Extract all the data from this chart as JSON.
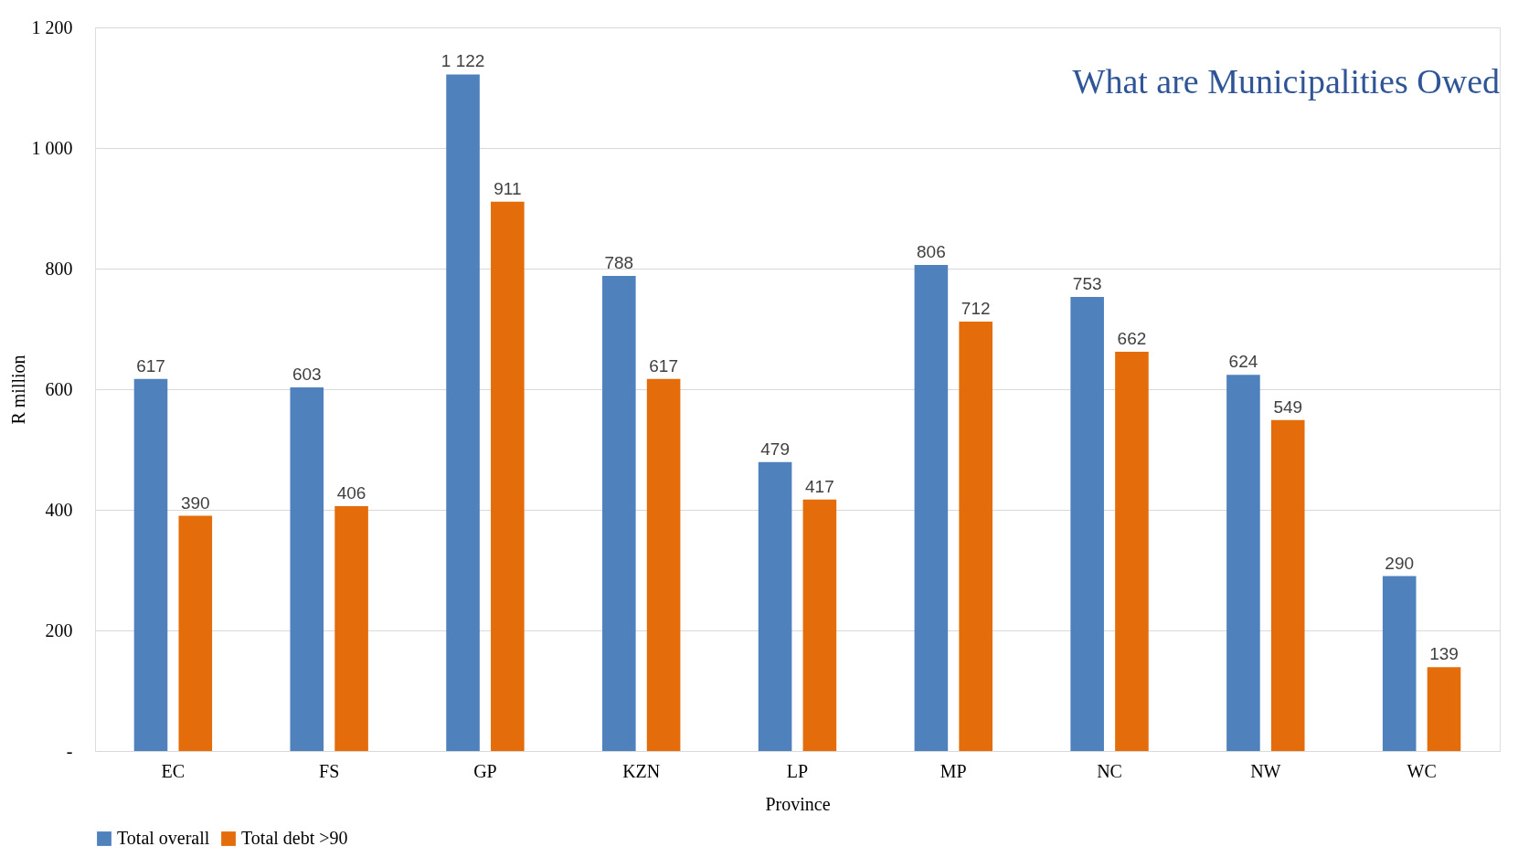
{
  "chart_data": {
    "type": "bar",
    "title": "What are Municipalities Owed",
    "xlabel": "Province",
    "ylabel": "R million",
    "categories": [
      "EC",
      "FS",
      "GP",
      "KZN",
      "LP",
      "MP",
      "NC",
      "NW",
      "WC"
    ],
    "series": [
      {
        "name": "Total overall",
        "color": "#4f81bd",
        "values": [
          617,
          603,
          1122,
          788,
          479,
          806,
          753,
          624,
          290
        ],
        "value_labels": [
          "617",
          "603",
          "1 122",
          "788",
          "479",
          "806",
          "753",
          "624",
          "290"
        ]
      },
      {
        "name": "Total debt >90",
        "color": "#e46c0a",
        "values": [
          390,
          406,
          911,
          617,
          417,
          712,
          662,
          549,
          139
        ],
        "value_labels": [
          "390",
          "406",
          "911",
          "617",
          "417",
          "712",
          "662",
          "549",
          "139"
        ]
      }
    ],
    "ylim": [
      0,
      1200
    ],
    "yticks": [
      {
        "value": 0,
        "label": "-"
      },
      200,
      400,
      600,
      800,
      {
        "value": 1000,
        "label": "1 000"
      },
      {
        "value": 1200,
        "label": "1 200"
      }
    ],
    "grid": "y",
    "legend": "bottom"
  }
}
